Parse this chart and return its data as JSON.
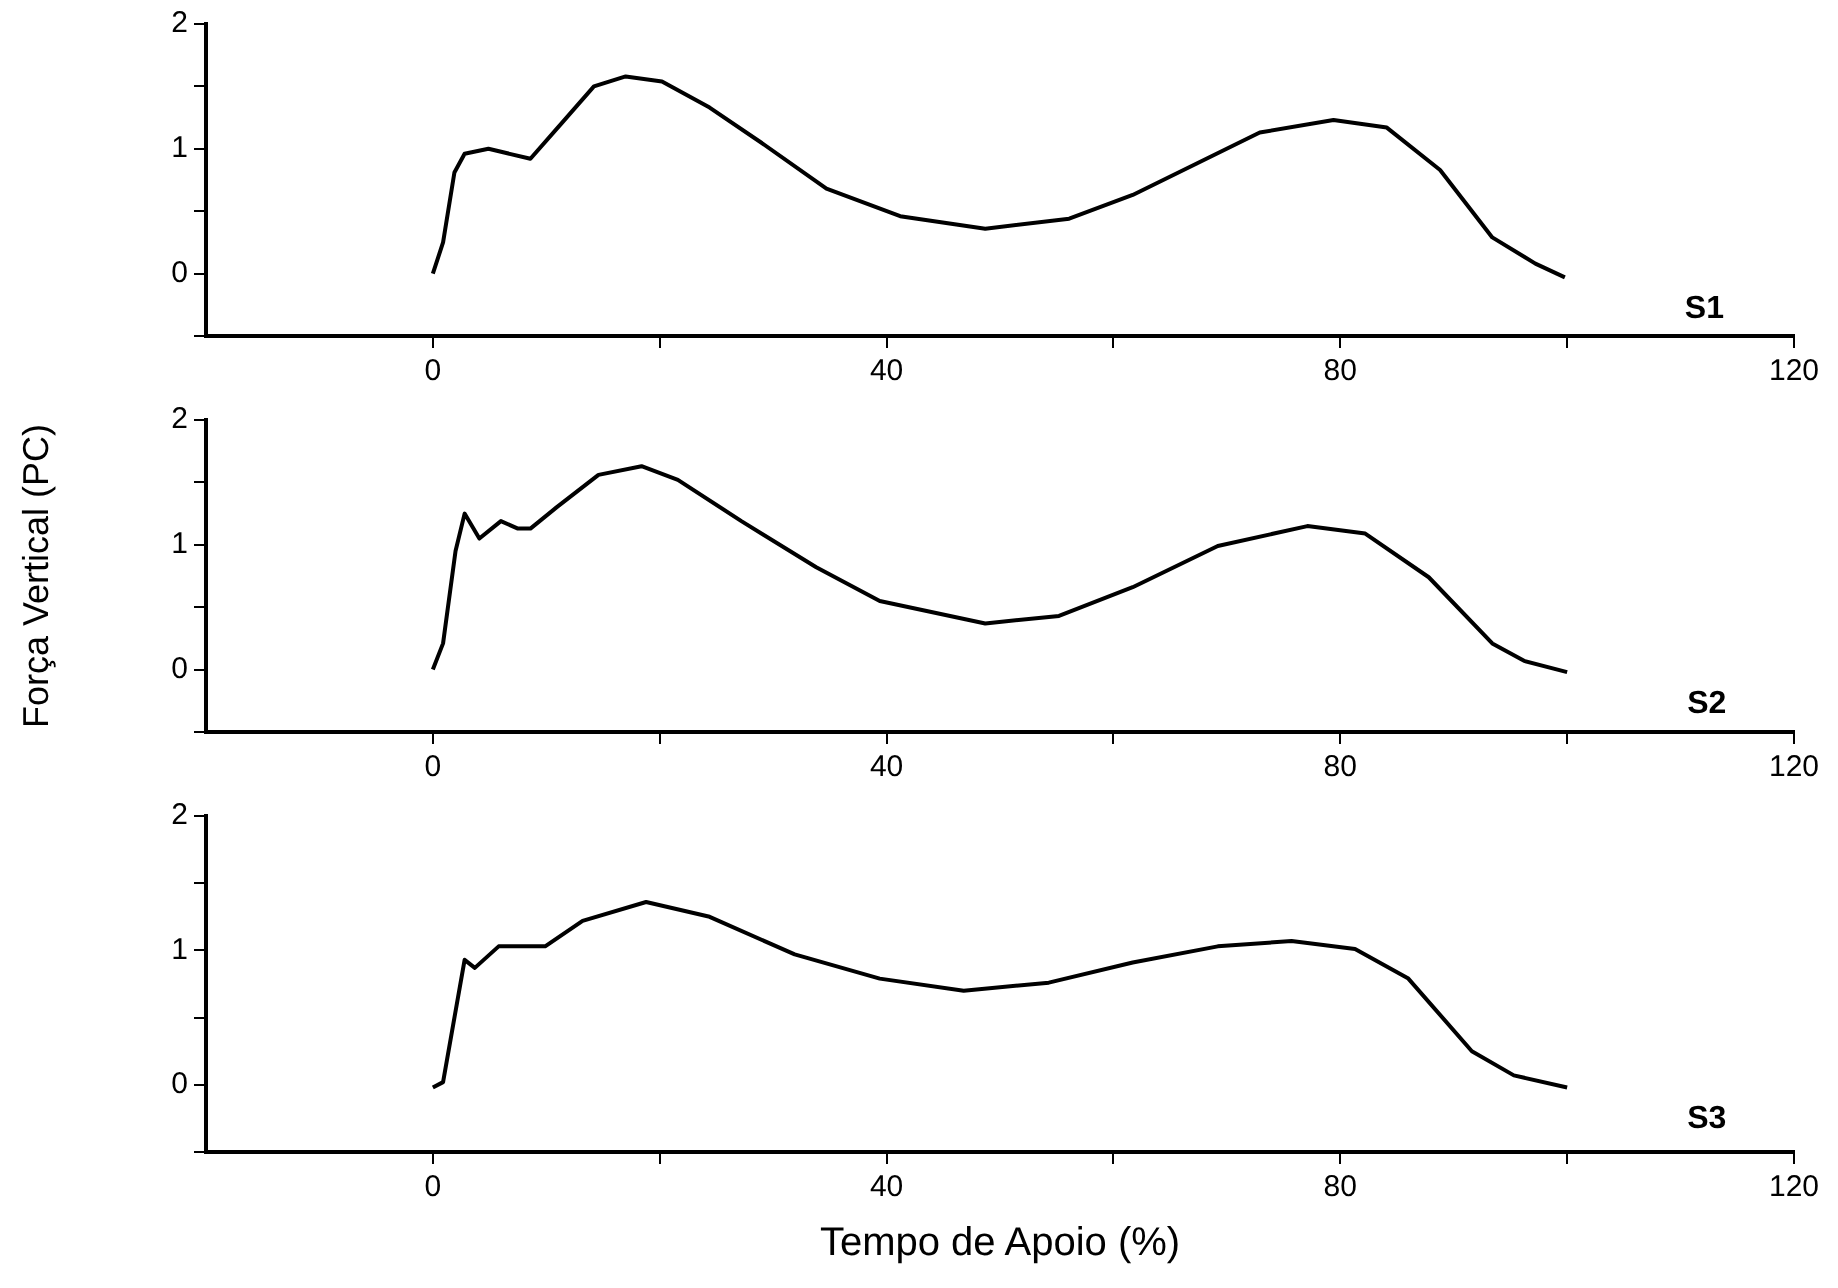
{
  "chart_data": [
    {
      "type": "line",
      "marker": "none",
      "x": [
        0,
        0.9,
        1.9,
        2.8,
        4.9,
        8.6,
        11.4,
        14.2,
        17,
        20.2,
        24.4,
        29.1,
        34.7,
        41.2,
        48.7,
        56.1,
        61.7,
        67.3,
        72.9,
        79.4,
        84.1,
        88.8,
        93.4,
        97.2,
        99.8
      ],
      "series": [
        {
          "name": "S1",
          "color": "#000000",
          "values": [
            0,
            0.25,
            0.81,
            0.96,
            1.0,
            0.92,
            1.21,
            1.5,
            1.58,
            1.54,
            1.33,
            1.04,
            0.68,
            0.46,
            0.36,
            0.44,
            0.63,
            0.88,
            1.13,
            1.23,
            1.17,
            0.83,
            0.29,
            0.08,
            -0.03
          ]
        }
      ],
      "xlim": [
        -20,
        120
      ],
      "xticks": [
        0,
        {
          "value": 20,
          "label": null
        },
        40,
        {
          "value": 60,
          "label": null
        },
        80,
        {
          "value": 100,
          "label": null
        },
        120
      ],
      "ylim": [
        -0.5,
        2
      ],
      "yticks": [
        {
          "value": -0.5,
          "label": null
        },
        0,
        {
          "value": 0.5,
          "label": null
        },
        1,
        {
          "value": 1.5,
          "label": null
        },
        2
      ]
    },
    {
      "type": "line",
      "marker": "none",
      "ylabel": "Força Vertical (PC)",
      "x": [
        0,
        0.9,
        2,
        2.8,
        4.1,
        6,
        7.5,
        8.6,
        10.9,
        14.6,
        18.4,
        21.6,
        27.2,
        33.8,
        39.4,
        48.7,
        55.2,
        61.7,
        69.2,
        77.1,
        82.2,
        87.8,
        93.4,
        96.2,
        100
      ],
      "series": [
        {
          "name": "S2",
          "color": "#000000",
          "values": [
            0,
            0.21,
            0.95,
            1.25,
            1.05,
            1.19,
            1.13,
            1.13,
            1.3,
            1.56,
            1.63,
            1.52,
            1.19,
            0.82,
            0.55,
            0.37,
            0.43,
            0.66,
            0.99,
            1.15,
            1.09,
            0.74,
            0.21,
            0.07,
            -0.02
          ]
        }
      ],
      "xlim": [
        -20,
        120
      ],
      "xticks": [
        0,
        {
          "value": 20,
          "label": null
        },
        40,
        {
          "value": 60,
          "label": null
        },
        80,
        {
          "value": 100,
          "label": null
        },
        120
      ],
      "ylim": [
        -0.5,
        2
      ],
      "yticks": [
        {
          "value": -0.5,
          "label": null
        },
        0,
        {
          "value": 0.5,
          "label": null
        },
        1,
        {
          "value": 1.5,
          "label": null
        },
        2
      ]
    },
    {
      "type": "line",
      "marker": "none",
      "xlabel": "Tempo de Apoio (%)",
      "x": [
        0,
        0.9,
        2.8,
        3.7,
        5.8,
        9.9,
        13.2,
        18.8,
        24.4,
        31.9,
        39.4,
        46.8,
        54.3,
        61.7,
        69.2,
        75.7,
        81.3,
        86,
        91.6,
        95.3,
        100
      ],
      "series": [
        {
          "name": "S3",
          "color": "#000000",
          "values": [
            -0.02,
            0.02,
            0.93,
            0.87,
            1.03,
            1.03,
            1.22,
            1.36,
            1.25,
            0.97,
            0.79,
            0.7,
            0.76,
            0.91,
            1.03,
            1.07,
            1.01,
            0.79,
            0.25,
            0.07,
            -0.02
          ]
        }
      ],
      "xlim": [
        -20,
        120
      ],
      "xticks": [
        0,
        {
          "value": 20,
          "label": null
        },
        40,
        {
          "value": 60,
          "label": null
        },
        80,
        {
          "value": 100,
          "label": null
        },
        120
      ],
      "ylim": [
        -0.5,
        2
      ],
      "yticks": [
        {
          "value": -0.5,
          "label": null
        },
        0,
        {
          "value": 0.5,
          "label": null
        },
        1,
        {
          "value": 1.5,
          "label": null
        },
        2
      ]
    }
  ]
}
